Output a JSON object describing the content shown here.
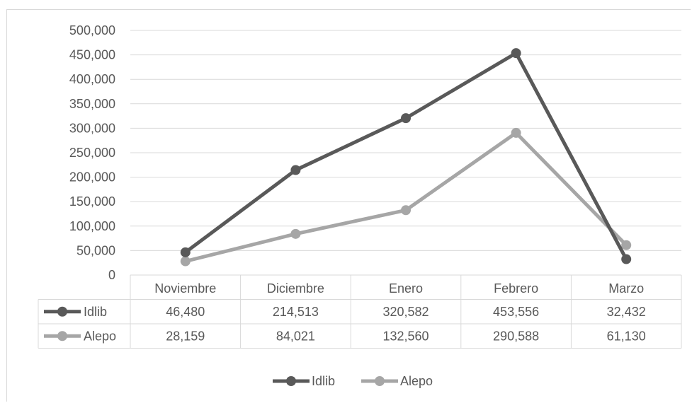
{
  "chart_data": {
    "type": "line",
    "categories": [
      "Noviembre",
      "Diciembre",
      "Enero",
      "Febrero",
      "Marzo"
    ],
    "series": [
      {
        "name": "Idlib",
        "values": [
          46480,
          214513,
          320582,
          453556,
          32432
        ],
        "color": "#595959"
      },
      {
        "name": "Alepo",
        "values": [
          28159,
          84021,
          132560,
          290588,
          61130
        ],
        "color": "#a6a6a6"
      }
    ],
    "data_table": {
      "rows": [
        [
          "46,480",
          "214,513",
          "320,582",
          "453,556",
          "32,432"
        ],
        [
          "28,159",
          "84,021",
          "132,560",
          "290,588",
          "61,130"
        ]
      ]
    },
    "y_ticks": [
      "0",
      "50,000",
      "100,000",
      "150,000",
      "200,000",
      "250,000",
      "300,000",
      "350,000",
      "400,000",
      "450,000",
      "500,000"
    ],
    "ylim": [
      0,
      500000
    ],
    "grid": true,
    "legend": "bottom",
    "gridline_color": "#d9d9d9",
    "title": "",
    "xlabel": "",
    "ylabel": ""
  }
}
